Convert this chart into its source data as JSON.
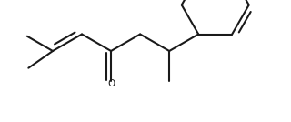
{
  "line_color": "#1a1a1a",
  "bg_color": "#ffffff",
  "line_width": 1.5,
  "figsize": [
    3.2,
    1.34
  ],
  "dpi": 100
}
